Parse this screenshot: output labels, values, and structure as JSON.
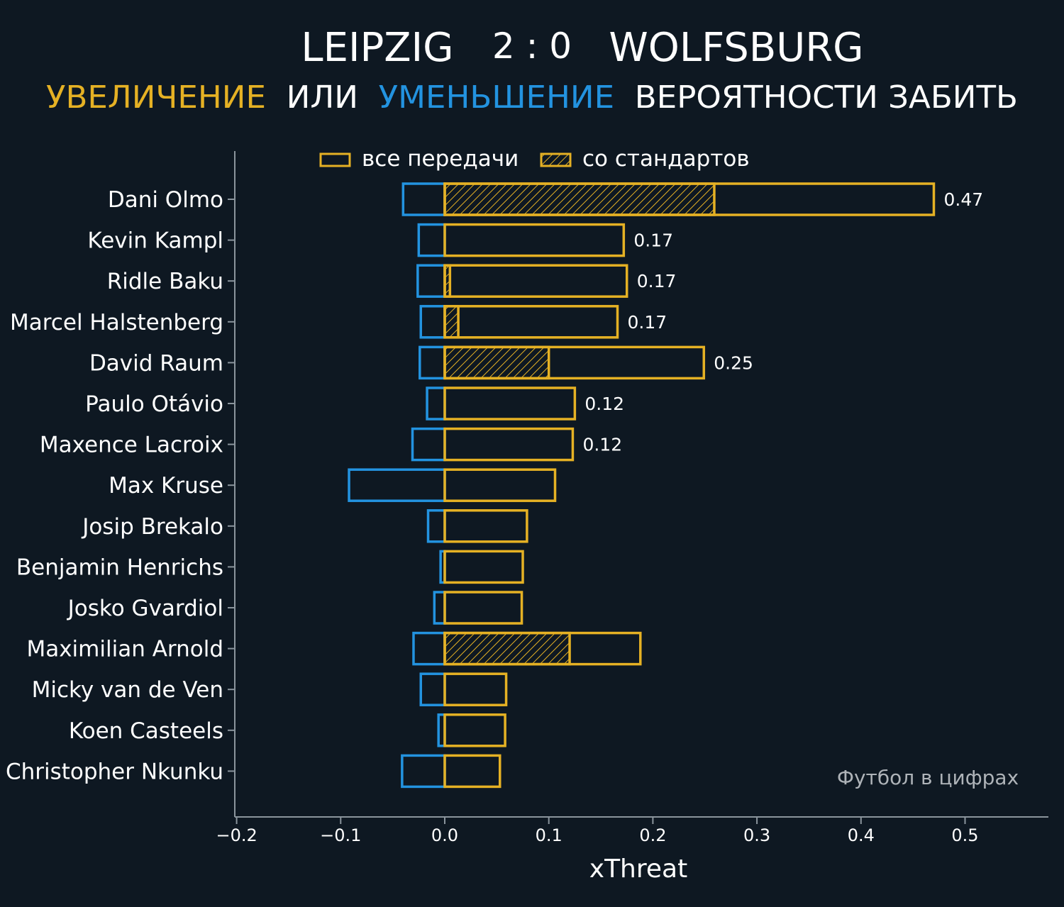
{
  "header": {
    "home_team": "LEIPZIG",
    "score": "2 : 0",
    "away_team": "WOLFSBURG",
    "subtitle_increase": "УВЕЛИЧЕНИЕ",
    "subtitle_or": "ИЛИ",
    "subtitle_decrease": "УМЕНЬШЕНИЕ",
    "subtitle_rest": "ВЕРОЯТНОСТИ ЗАБИТЬ"
  },
  "watermark": "Футбол в цифрах",
  "colors": {
    "background": "#0e1822",
    "increase": "#e5b124",
    "decrease": "#2393e0",
    "text": "#ffffff",
    "axis": "#8a949c",
    "watermark": "#aeb3b8"
  },
  "chart_data": {
    "type": "bar",
    "orientation": "horizontal",
    "title": "LEIPZIG 2 : 0 WOLFSBURG",
    "subtitle": "УВЕЛИЧЕНИЕ ИЛИ УМЕНЬШЕНИЕ ВЕРОЯТНОСТИ ЗАБИТЬ",
    "xlabel": "xThreat",
    "ylabel": "",
    "xlim": [
      -0.2,
      0.58
    ],
    "xticks": [
      {
        "value": -0.2,
        "label": "−0.2"
      },
      {
        "value": -0.1,
        "label": "−0.1"
      },
      {
        "value": 0.0,
        "label": "0.0"
      },
      {
        "value": 0.1,
        "label": "0.1"
      },
      {
        "value": 0.2,
        "label": "0.2"
      },
      {
        "value": 0.3,
        "label": "0.3"
      },
      {
        "value": 0.4,
        "label": "0.4"
      },
      {
        "value": 0.5,
        "label": "0.5"
      }
    ],
    "legend": {
      "position": "top-center",
      "all_passes": "все передачи",
      "set_pieces": "со стандартов"
    },
    "categories": [
      "Dani Olmo",
      "Kevin Kampl",
      "Ridle Baku",
      "Marcel Halstenberg",
      "David Raum",
      "Paulo Otávio",
      "Maxence Lacroix",
      "Max Kruse",
      "Josip Brekalo",
      "Benjamin Henrichs",
      "Josko Gvardiol",
      "Maximilian Arnold",
      "Micky van de Ven",
      "Koen Casteels",
      "Christopher Nkunku"
    ],
    "series": [
      {
        "name": "все передачи (увеличение)",
        "values": [
          0.47,
          0.172,
          0.175,
          0.166,
          0.249,
          0.125,
          0.123,
          0.106,
          0.079,
          0.075,
          0.074,
          0.188,
          0.059,
          0.058,
          0.053
        ]
      },
      {
        "name": "со стандартов",
        "values": [
          0.259,
          0,
          0.005,
          0.013,
          0.1,
          0,
          0,
          0,
          0,
          0,
          0,
          0.12,
          0,
          0,
          0
        ]
      },
      {
        "name": "уменьшение",
        "values": [
          -0.04,
          -0.025,
          -0.026,
          -0.023,
          -0.024,
          -0.017,
          -0.031,
          -0.092,
          -0.016,
          -0.004,
          -0.01,
          -0.03,
          -0.023,
          -0.006,
          -0.041
        ]
      }
    ],
    "value_labels": [
      "0.47",
      "0.17",
      "0.17",
      "0.17",
      "0.25",
      "0.12",
      "0.12",
      "",
      "",
      "",
      "",
      "",
      "",
      "",
      ""
    ]
  }
}
